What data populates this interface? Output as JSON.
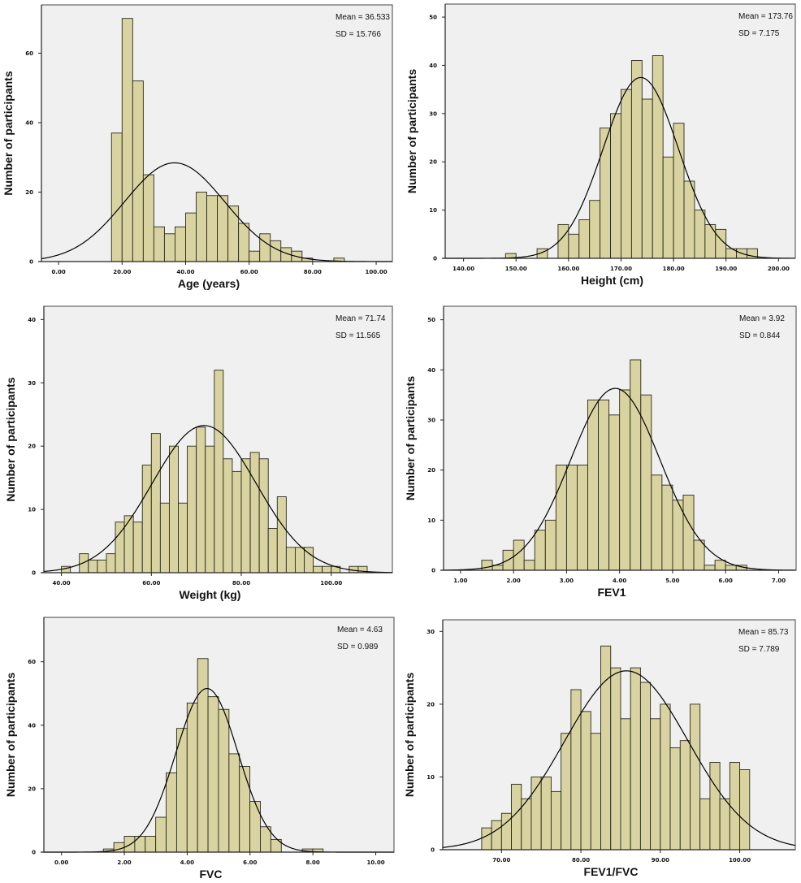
{
  "style": {
    "bar_fill": "#d8d3a0",
    "bar_stroke": "#2a2a1a",
    "plot_bg": "#f0f0f0",
    "curve": "#000000"
  },
  "chart_data": [
    {
      "type": "bar",
      "subtype": "histogram-with-normal-curve",
      "xlabel": "Age (years)",
      "ylabel": "Number of participants",
      "mean_label": "Mean = 36.533",
      "sd_label": "SD = 15.766",
      "mean": 36.533,
      "sd": 15.766,
      "bin_start": 16.667,
      "bin_width": 3.333,
      "values": [
        37,
        70,
        52,
        25,
        10,
        8,
        10,
        14,
        20,
        19,
        19,
        16,
        11,
        3,
        8,
        6,
        4,
        3,
        1,
        0,
        0,
        1
      ],
      "xlim": [
        -5.4,
        105.1
      ],
      "ylim": [
        0,
        73.9
      ],
      "xticks": [
        0,
        20,
        40,
        60,
        80,
        100
      ],
      "xtick_labels": [
        "0.00",
        "20.00",
        "40.00",
        "60.00",
        "80.00",
        "100.00"
      ],
      "yticks": [
        0,
        20,
        40,
        60
      ],
      "ytick_labels": [
        "0",
        "20",
        "40",
        "60"
      ]
    },
    {
      "type": "bar",
      "subtype": "histogram-with-normal-curve",
      "xlabel": "Height (cm)",
      "ylabel": "Number of participants",
      "mean_label": "Mean = 173.76",
      "sd_label": "SD = 7.175",
      "mean": 173.76,
      "sd": 7.175,
      "bin_start": 148,
      "bin_width": 2,
      "values": [
        1,
        0,
        0,
        2,
        0,
        7,
        5,
        8,
        12,
        27,
        30,
        35,
        41,
        33,
        42,
        21,
        28,
        16,
        10,
        7,
        6,
        2,
        2,
        2
      ],
      "xlim": [
        136.5,
        203.2
      ],
      "ylim": [
        0,
        52.7
      ],
      "xticks": [
        140,
        150,
        160,
        170,
        180,
        190,
        200
      ],
      "xtick_labels": [
        "140.00",
        "150.00",
        "160.00",
        "170.00",
        "180.00",
        "190.00",
        "200.00"
      ],
      "yticks": [
        0,
        10,
        20,
        30,
        40,
        50
      ],
      "ytick_labels": [
        "0",
        "10",
        "20",
        "30",
        "40",
        "50"
      ]
    },
    {
      "type": "bar",
      "subtype": "histogram-with-normal-curve",
      "xlabel": "Weight (kg)",
      "ylabel": "Number of participants",
      "mean_label": "Mean  = 71.74",
      "sd_label": "SD = 11.565",
      "mean": 71.74,
      "sd": 11.565,
      "bin_start": 40,
      "bin_width": 2,
      "values": [
        1,
        0,
        3,
        2,
        2,
        3,
        8,
        9,
        8,
        17,
        22,
        11,
        20,
        11,
        20,
        23,
        20,
        32,
        18,
        16,
        18,
        19,
        18,
        7,
        12,
        4,
        4,
        4,
        1,
        1,
        1,
        0,
        1,
        1
      ],
      "xlim": [
        36.1,
        113.6
      ],
      "ylim": [
        0,
        42.1
      ],
      "xticks": [
        40,
        60,
        80,
        100
      ],
      "xtick_labels": [
        "40.00",
        "60.00",
        "80.00",
        "100.00"
      ],
      "yticks": [
        0,
        10,
        20,
        30,
        40
      ],
      "ytick_labels": [
        "0",
        "10",
        "20",
        "30",
        "40"
      ]
    },
    {
      "type": "bar",
      "subtype": "histogram-with-normal-curve",
      "xlabel": "FEV1",
      "ylabel": "Number of participants",
      "mean_label": "Mean = 3.92",
      "sd_label": "SD = 0.844",
      "mean": 3.92,
      "sd": 0.844,
      "bin_start": 1.4,
      "bin_width": 0.2,
      "values": [
        2,
        1,
        4,
        6,
        2,
        8,
        10,
        21,
        21,
        21,
        34,
        34,
        31,
        36,
        42,
        35,
        19,
        17,
        14,
        15,
        6,
        1,
        2,
        1,
        1
      ],
      "xlim": [
        0.68,
        7.33
      ],
      "ylim": [
        0,
        52.7
      ],
      "xticks": [
        1,
        2,
        3,
        4,
        5,
        6,
        7
      ],
      "xtick_labels": [
        "1.00",
        "2.00",
        "3.00",
        "4.00",
        "5.00",
        "6.00",
        "7.00"
      ],
      "yticks": [
        0,
        10,
        20,
        30,
        40,
        50
      ],
      "ytick_labels": [
        "0",
        "10",
        "20",
        "30",
        "40",
        "50"
      ]
    },
    {
      "type": "bar",
      "subtype": "histogram-with-normal-curve",
      "xlabel": "FVC",
      "ylabel": "Number of participants",
      "mean_label": "Mean = 4.63",
      "sd_label": "SD = 0.989",
      "mean": 4.63,
      "sd": 0.989,
      "bin_start": 1.333,
      "bin_width": 0.333,
      "values": [
        1,
        3,
        5,
        5,
        5,
        11,
        25,
        39,
        47,
        61,
        49,
        45,
        31,
        27,
        16,
        8,
        4,
        0,
        0,
        1,
        1
      ],
      "xlim": [
        -0.56,
        10.58
      ],
      "ylim": [
        0,
        74
      ],
      "xticks": [
        0,
        2,
        4,
        6,
        8,
        10
      ],
      "xtick_labels": [
        "0.00",
        "2.00",
        "4.00",
        "6.00",
        "8.00",
        "10.00"
      ],
      "yticks": [
        0,
        20,
        40,
        60
      ],
      "ytick_labels": [
        "0",
        "20",
        "40",
        "60"
      ]
    },
    {
      "type": "bar",
      "subtype": "histogram-with-normal-curve",
      "xlabel": "FEV1/FVC",
      "ylabel": "Number of participants",
      "mean_label": "Mean = 85.73",
      "sd_label": "SD = 7.789",
      "mean": 85.73,
      "sd": 7.789,
      "bin_start": 67.5,
      "bin_width": 1.25,
      "values": [
        3,
        4,
        5,
        9,
        7,
        10,
        10,
        8,
        16,
        22,
        19,
        16,
        28,
        25,
        18,
        25,
        23,
        18,
        20,
        14,
        15,
        20,
        7,
        12,
        7,
        12,
        11
      ],
      "xlim": [
        62.6,
        107.0
      ],
      "ylim": [
        0,
        31.6
      ],
      "xticks": [
        70,
        80,
        90,
        100
      ],
      "xtick_labels": [
        "70.00",
        "80.00",
        "90.00",
        "100.00"
      ],
      "yticks": [
        0,
        10,
        20,
        30
      ],
      "ytick_labels": [
        "0",
        "10",
        "20",
        "30"
      ]
    }
  ]
}
